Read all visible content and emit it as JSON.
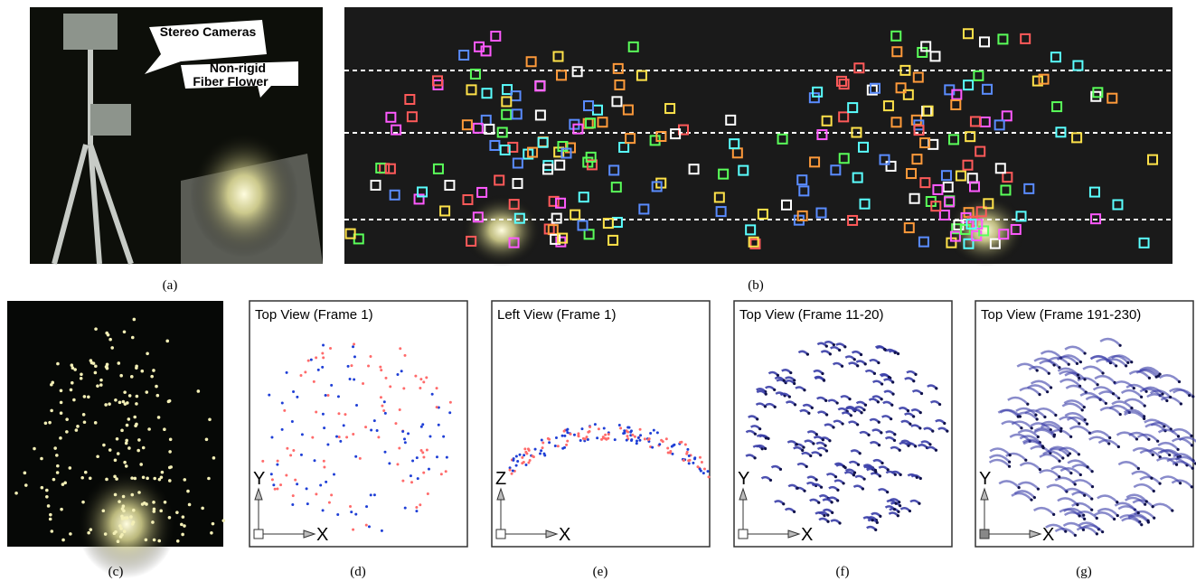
{
  "figure": {
    "panels": [
      {
        "caption": "(a)",
        "callout_lines": [
          "Stereo Cameras",
          "Non-rigid",
          "Fiber Flower"
        ]
      },
      {
        "caption": "(b)"
      },
      {
        "caption": "(c)"
      },
      {
        "caption": "(d)",
        "title": "Top View (Frame 1)",
        "axis_vertical": "Y",
        "axis_horizontal": "X"
      },
      {
        "caption": "(e)",
        "title": "Left View (Frame 1)",
        "axis_vertical": "Z",
        "axis_horizontal": "X"
      },
      {
        "caption": "(f)",
        "title": "Top View (Frame 11-20)",
        "axis_vertical": "Y",
        "axis_horizontal": "X"
      },
      {
        "caption": "(g)",
        "title": "Top View (Frame 191-230)",
        "axis_vertical": "Y",
        "axis_horizontal": "X"
      }
    ]
  }
}
